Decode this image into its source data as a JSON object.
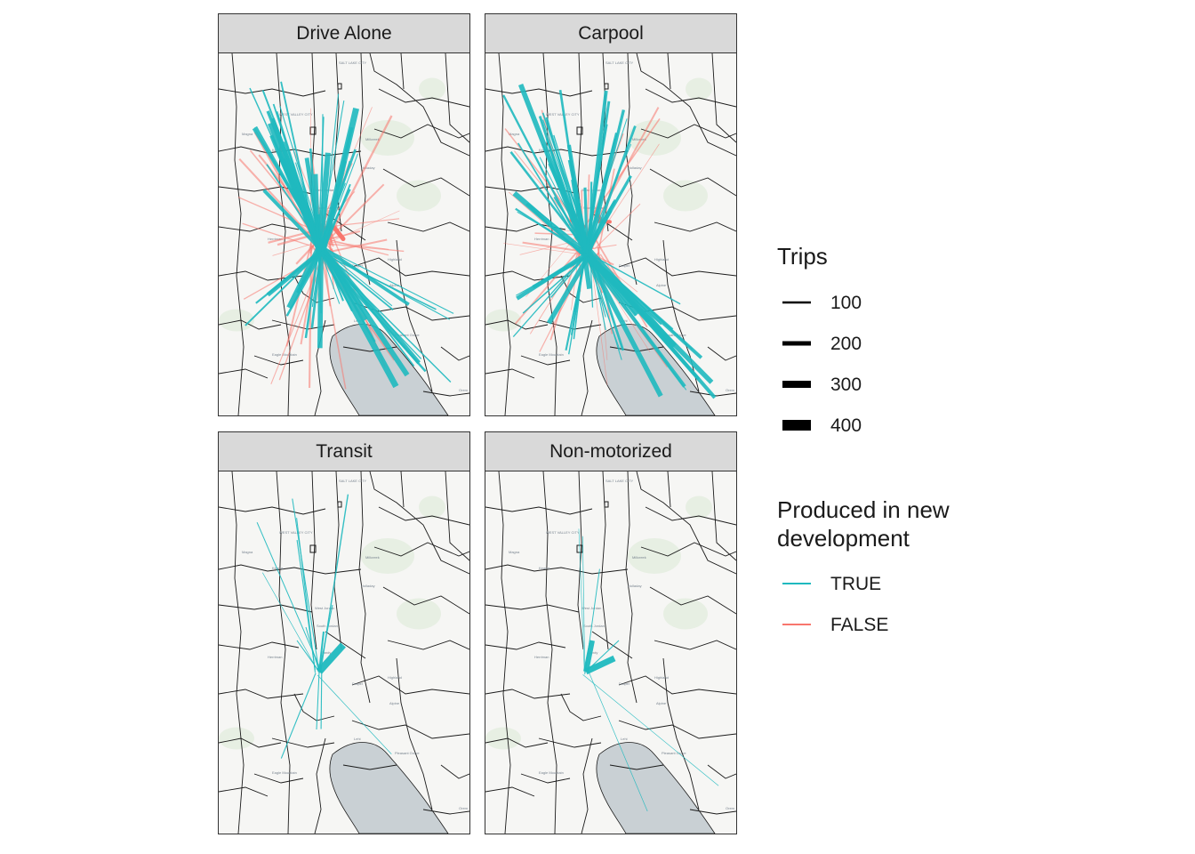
{
  "panels": [
    {
      "title": "Drive Alone",
      "mode": "drive"
    },
    {
      "title": "Carpool",
      "mode": "carpool"
    },
    {
      "title": "Transit",
      "mode": "transit"
    },
    {
      "title": "Non-motorized",
      "mode": "nonmotor"
    }
  ],
  "map_labels": [
    "WEST VALLEY CITY",
    "SALT LAKE CITY",
    "Magna",
    "Kearns",
    "Millcreek",
    "Holladay",
    "West Jordan",
    "South Jordan",
    "Sandy",
    "Herriman",
    "Draper",
    "Highland",
    "Alpine",
    "Lehi",
    "Pleasant Grove",
    "Eagle Mountain",
    "Orem"
  ],
  "legend": {
    "size": {
      "title": "Trips",
      "items": [
        {
          "label": "100",
          "trips": 100
        },
        {
          "label": "200",
          "trips": 200
        },
        {
          "label": "300",
          "trips": 300
        },
        {
          "label": "400",
          "trips": 400
        }
      ]
    },
    "color": {
      "title_line1": "Produced in new",
      "title_line2": "development",
      "items": [
        {
          "label": "TRUE",
          "color": "#1fb9bf"
        },
        {
          "label": "FALSE",
          "color": "#f8766d"
        }
      ]
    }
  }
}
